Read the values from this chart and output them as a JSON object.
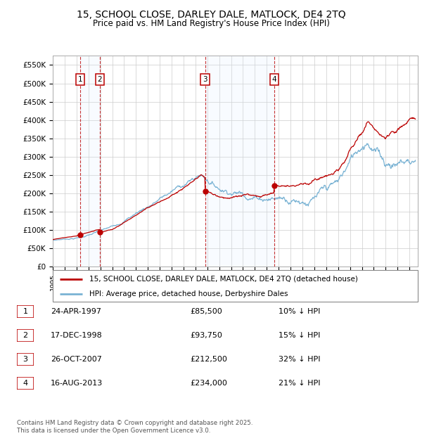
{
  "title": "15, SCHOOL CLOSE, DARLEY DALE, MATLOCK, DE4 2TQ",
  "subtitle": "Price paid vs. HM Land Registry's House Price Index (HPI)",
  "ylim": [
    0,
    575000
  ],
  "yticks": [
    0,
    50000,
    100000,
    150000,
    200000,
    250000,
    300000,
    350000,
    400000,
    450000,
    500000,
    550000
  ],
  "ytick_labels": [
    "£0",
    "£50K",
    "£100K",
    "£150K",
    "£200K",
    "£250K",
    "£300K",
    "£350K",
    "£400K",
    "£450K",
    "£500K",
    "£550K"
  ],
  "hpi_color": "#7ab3d4",
  "price_color": "#bb0000",
  "transaction_bg": "#ddeeff",
  "grid_color": "#cccccc",
  "transactions": [
    {
      "num": 1,
      "date": "24-APR-1997",
      "year": 1997.31,
      "price": 85500,
      "pct": "10%",
      "dir": "↓"
    },
    {
      "num": 2,
      "date": "17-DEC-1998",
      "year": 1998.96,
      "price": 93750,
      "pct": "15%",
      "dir": "↓"
    },
    {
      "num": 3,
      "date": "26-OCT-2007",
      "year": 2007.82,
      "price": 212500,
      "pct": "32%",
      "dir": "↓"
    },
    {
      "num": 4,
      "date": "16-AUG-2013",
      "year": 2013.62,
      "price": 234000,
      "pct": "21%",
      "dir": "↓"
    }
  ],
  "legend_property": "15, SCHOOL CLOSE, DARLEY DALE, MATLOCK, DE4 2TQ (detached house)",
  "legend_hpi": "HPI: Average price, detached house, Derbyshire Dales",
  "footer1": "Contains HM Land Registry data © Crown copyright and database right 2025.",
  "footer2": "This data is licensed under the Open Government Licence v3.0.",
  "hpi_base_1995": 72000,
  "hpi_base_2025": 460000,
  "noise_seed_hpi": 7,
  "noise_seed_prop": 13,
  "noise_scale_hpi": 4000,
  "noise_scale_prop": 2500
}
